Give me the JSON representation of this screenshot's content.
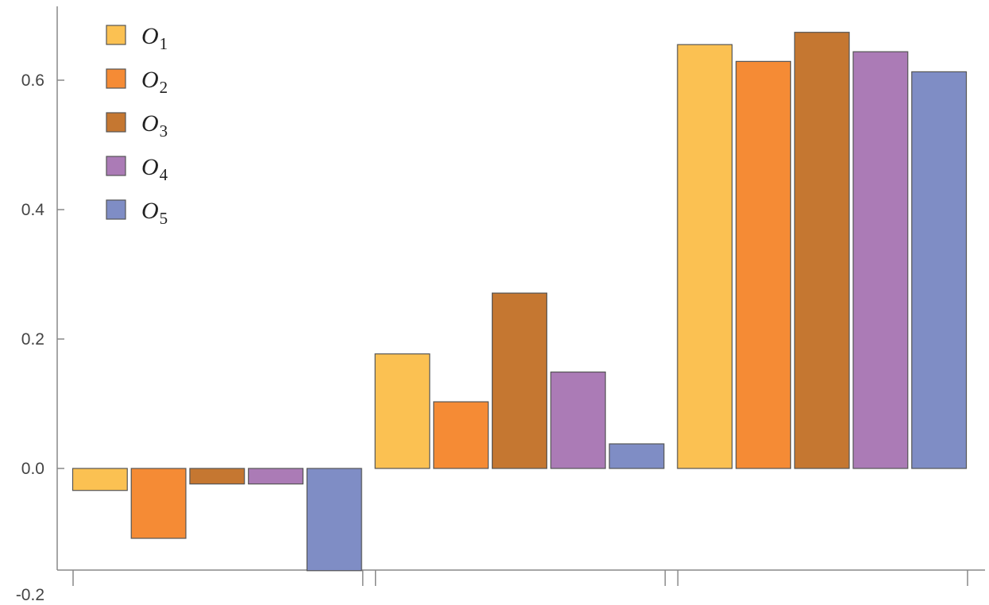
{
  "chart_data": {
    "type": "bar",
    "categories": [
      "",
      "",
      ""
    ],
    "series": [
      {
        "name": "O",
        "sub": "1",
        "color": "#FBC152",
        "values": [
          -0.034,
          0.177,
          0.655
        ]
      },
      {
        "name": "O",
        "sub": "2",
        "color": "#F58B35",
        "values": [
          -0.108,
          0.103,
          0.629
        ]
      },
      {
        "name": "O",
        "sub": "3",
        "color": "#C57731",
        "values": [
          -0.024,
          0.271,
          0.674
        ]
      },
      {
        "name": "O",
        "sub": "4",
        "color": "#AB7BB6",
        "values": [
          -0.024,
          0.149,
          0.644
        ]
      },
      {
        "name": "O",
        "sub": "5",
        "color": "#7F8DC5",
        "values": [
          -0.158,
          0.038,
          0.613
        ]
      }
    ],
    "yticks": [
      -0.2,
      0.0,
      0.2,
      0.4,
      0.6
    ],
    "ytick_labels": [
      "-0.2",
      "0.0",
      "0.2",
      "0.4",
      "0.6"
    ],
    "ylim": [
      -0.158,
      0.72
    ],
    "xlabel": "",
    "ylabel": "",
    "title": "",
    "legend_position": "top-left",
    "grid": false
  }
}
